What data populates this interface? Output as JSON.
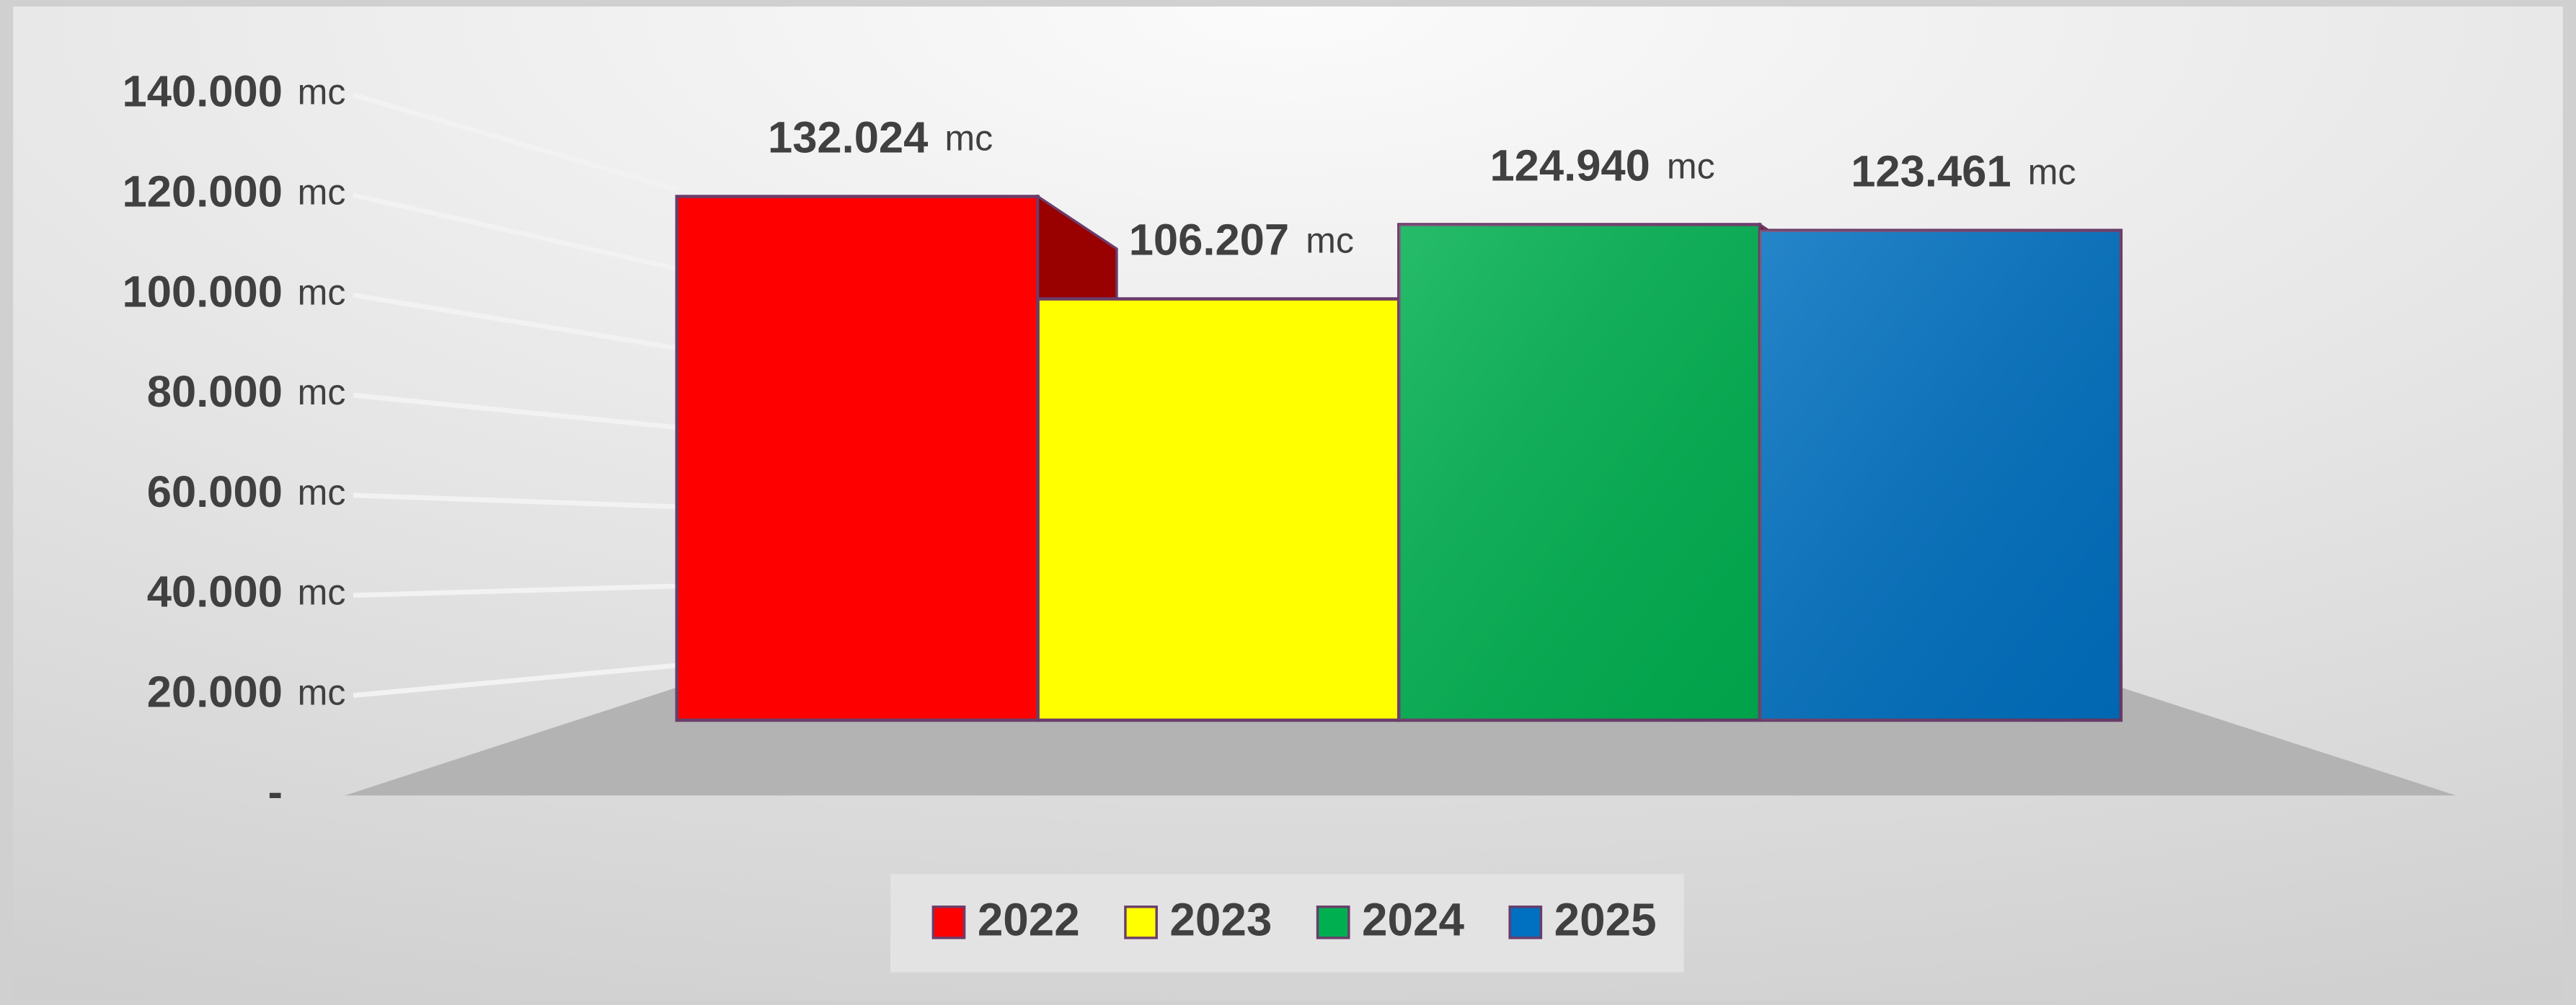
{
  "chart_data": {
    "type": "bar3d",
    "series": [
      {
        "name": "2022",
        "color": "#ff0000",
        "values": [
          132024
        ],
        "value_labels": [
          "132.024 mc"
        ]
      },
      {
        "name": "2023",
        "color": "#ffff00",
        "values": [
          106207
        ],
        "value_labels": [
          "106.207 mc"
        ]
      },
      {
        "name": "2024",
        "color": "#00b050",
        "values": [
          124940
        ],
        "value_labels": [
          "124.940 mc"
        ]
      },
      {
        "name": "2025",
        "color": "#0070c0",
        "values": [
          123461
        ],
        "value_labels": [
          "123.461 mc"
        ]
      }
    ],
    "ylim": [
      0,
      140000
    ],
    "yticks": [
      {
        "value": 0,
        "label": "-"
      },
      {
        "value": 20000,
        "label": "20.000 mc"
      },
      {
        "value": 40000,
        "label": "40.000 mc"
      },
      {
        "value": 60000,
        "label": "60.000 mc"
      },
      {
        "value": 80000,
        "label": "80.000 mc"
      },
      {
        "value": 100000,
        "label": "100.000 mc"
      },
      {
        "value": 120000,
        "label": "120.000 mc"
      },
      {
        "value": 140000,
        "label": "140.000 mc"
      }
    ],
    "grid": true,
    "legend": "bottom"
  }
}
